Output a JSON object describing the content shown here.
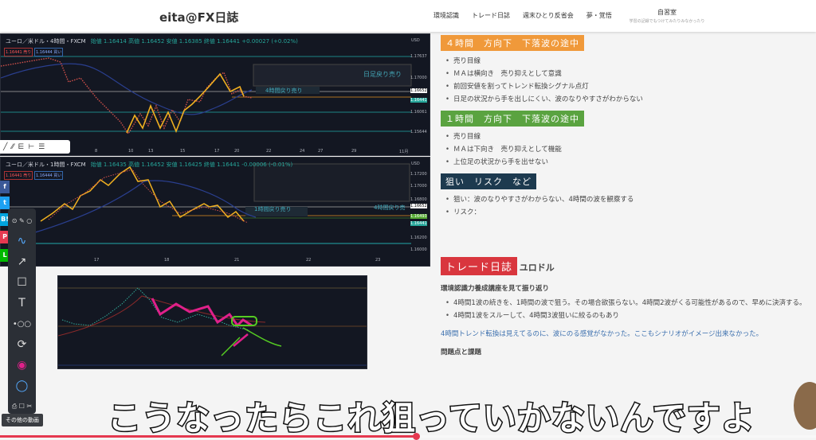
{
  "header": {
    "title": "eita@FX日誌",
    "nav": [
      "環境認識",
      "トレード日誌",
      "週末ひとり反省会",
      "夢・覚悟"
    ],
    "nav_sub": {
      "label": "自習室",
      "caption": "学習の記録でもつけてみたりみなかったり"
    }
  },
  "chart1": {
    "title": "ユーロ／米ドル・4時間・FXCM",
    "ohlc": "始値 1.16414 高値 1.16452 安値 1.16385 終値 1.16441 +0.00027 (+0.02%)",
    "sell": "1.16441 売り",
    "buy": "1.16444 買い",
    "currency": "USD",
    "prices": [
      "1.17637",
      "1.17000",
      "1.16652",
      "1.16441",
      "1.16061",
      "1.15644"
    ],
    "dates": [
      "8",
      "10",
      "13",
      "15",
      "17",
      "20",
      "22",
      "24",
      "27",
      "29",
      "11月"
    ],
    "annot_daily": "日足戻り売り",
    "annot_4h": "4時間戻り売り"
  },
  "chart2": {
    "title": "ユーロ／米ドル・1時間・FXCM",
    "ohlc": "始値 1.16435 高値 1.16452 安値 1.16425 終値 1.16441 -0.00006 (-0.01%)",
    "sell": "1.16441 売り",
    "buy": "1.16444 買い",
    "currency": "USD",
    "prices": [
      "1.17200",
      "1.17000",
      "1.16800",
      "1.16652",
      "1.16493",
      "1.16441",
      "1.16200",
      "1.16000"
    ],
    "dates": [
      "17",
      "18",
      "21",
      "22",
      "23"
    ],
    "annot_1h": "1時間戻り売り",
    "annot_4h": "4時間戻り売"
  },
  "right": {
    "h1": "４時間　方向下　下落波の途中",
    "h1_color": "#f0993a",
    "h1_items": [
      "売り目線",
      "ＭＡは横向き　売り抑えとして意識",
      "前回安値を割ってトレンド転換シグナル点灯",
      "日足の状況から手を出しにくい、波のなりやすさがわからない"
    ],
    "h2": "１時間　方向下　下落波の途中",
    "h2_color": "#5aa340",
    "h2_items": [
      "売り目線",
      "ＭＡは下向き　売り抑えとして機能",
      "上位足の状況から手を出せない"
    ],
    "h3": "狙い　リスク　など",
    "h3_color": "#1d3a4f",
    "h3_items": [
      "狙い：波のなりやすさがわからない、4時間の波を観察する",
      "リスク："
    ],
    "h4": "トレード日誌",
    "h4_color": "#d9363e",
    "h4_pair": "ユロドル",
    "sub": "環境認識力養成講座を見て振り返り",
    "items": [
      "4時間1波の続きを、1時間の波で狙う。その場合欲張らない。4時間2波がくる可能性があるので、早めに決済する。",
      "4時間1波をスルーして、4時間3波狙いに絞るのもあり"
    ],
    "note": "4時間トレンド転換は見えてるのに、波にのる感覚がなかった。ここもシナリオがイメージ出来なかった。",
    "partial": "問題点と課題"
  },
  "video": {
    "subtitle": "こうなったらこれ狙っていかないんですよ",
    "more_videos": "その他の動画",
    "progress_percent": 51,
    "accent": "#e53950"
  },
  "share": [
    "f",
    "t",
    "B!",
    "P",
    "L"
  ]
}
